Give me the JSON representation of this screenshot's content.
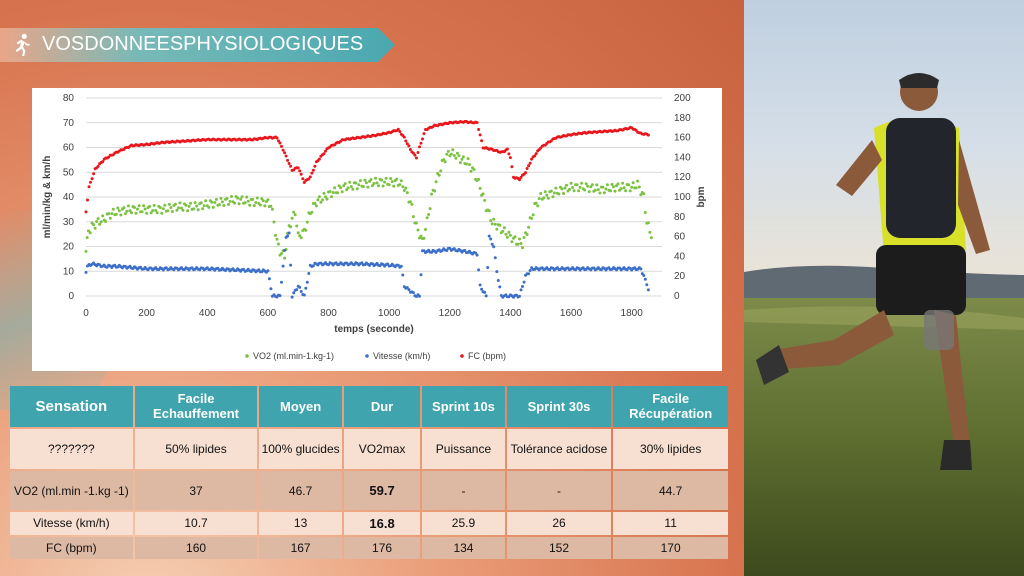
{
  "slide": {
    "title": "VOS DONNEES PHYSIOLOGIQUES",
    "title_parts": [
      "VOS",
      "DONNEES",
      "PHYSIOLOGIQUES"
    ]
  },
  "colors": {
    "vo2": "#7cc242",
    "speed": "#3d6fc8",
    "hr": "#e8171d",
    "table_header": "#3fa4ad",
    "banner": "#5fb4b8"
  },
  "chart_data": {
    "type": "scatter",
    "xlabel": "temps (seconde)",
    "ylabel_left": "ml/min/kg   &   km/h",
    "ylabel_right": "bpm",
    "x_ticks": [
      0,
      200,
      400,
      600,
      800,
      1000,
      1200,
      1400,
      1600,
      1800
    ],
    "y_left_ticks": [
      0,
      10,
      20,
      30,
      40,
      50,
      60,
      70,
      80
    ],
    "y_right_ticks": [
      0,
      20,
      40,
      60,
      80,
      100,
      120,
      140,
      160,
      180,
      200
    ],
    "xlim": [
      0,
      1900
    ],
    "ylim_left": [
      0,
      80
    ],
    "ylim_right": [
      0,
      200
    ],
    "legend_position": "bottom",
    "series": [
      {
        "name": "VO2  (ml.min-1.kg-1)",
        "axis": "left",
        "color": "#7cc242",
        "points": [
          [
            0,
            18
          ],
          [
            8,
            26
          ],
          [
            20,
            28
          ],
          [
            40,
            30
          ],
          [
            60,
            31
          ],
          [
            80,
            33
          ],
          [
            100,
            34
          ],
          [
            150,
            35
          ],
          [
            200,
            35
          ],
          [
            250,
            35
          ],
          [
            300,
            36
          ],
          [
            350,
            36
          ],
          [
            400,
            37
          ],
          [
            450,
            38
          ],
          [
            500,
            39
          ],
          [
            550,
            38
          ],
          [
            590,
            38
          ],
          [
            610,
            37
          ],
          [
            620,
            30
          ],
          [
            630,
            22
          ],
          [
            640,
            18
          ],
          [
            655,
            16
          ],
          [
            670,
            28
          ],
          [
            690,
            34
          ],
          [
            700,
            24
          ],
          [
            720,
            26
          ],
          [
            740,
            34
          ],
          [
            760,
            38
          ],
          [
            800,
            41
          ],
          [
            850,
            44
          ],
          [
            900,
            45
          ],
          [
            950,
            46
          ],
          [
            1000,
            46
          ],
          [
            1030,
            46
          ],
          [
            1050,
            44
          ],
          [
            1070,
            38
          ],
          [
            1090,
            28
          ],
          [
            1110,
            22
          ],
          [
            1125,
            30
          ],
          [
            1140,
            40
          ],
          [
            1160,
            48
          ],
          [
            1180,
            55
          ],
          [
            1200,
            58
          ],
          [
            1220,
            57
          ],
          [
            1240,
            55
          ],
          [
            1260,
            54
          ],
          [
            1280,
            50
          ],
          [
            1300,
            44
          ],
          [
            1320,
            36
          ],
          [
            1340,
            30
          ],
          [
            1360,
            28
          ],
          [
            1380,
            26
          ],
          [
            1400,
            24
          ],
          [
            1420,
            22
          ],
          [
            1440,
            21
          ],
          [
            1460,
            28
          ],
          [
            1480,
            36
          ],
          [
            1500,
            40
          ],
          [
            1550,
            42
          ],
          [
            1600,
            44
          ],
          [
            1650,
            44
          ],
          [
            1700,
            43
          ],
          [
            1750,
            44
          ],
          [
            1800,
            44
          ],
          [
            1820,
            45
          ],
          [
            1840,
            40
          ],
          [
            1850,
            30
          ],
          [
            1860,
            26
          ],
          [
            1870,
            24
          ]
        ]
      },
      {
        "name": "Vitesse (km/h)",
        "axis": "left",
        "color": "#3d6fc8",
        "points": [
          [
            0,
            10
          ],
          [
            5,
            12
          ],
          [
            20,
            13
          ],
          [
            60,
            12
          ],
          [
            100,
            12
          ],
          [
            200,
            11
          ],
          [
            300,
            11
          ],
          [
            400,
            11
          ],
          [
            500,
            10.5
          ],
          [
            600,
            10
          ],
          [
            615,
            0
          ],
          [
            640,
            0
          ],
          [
            660,
            24
          ],
          [
            670,
            25
          ],
          [
            680,
            0
          ],
          [
            700,
            4
          ],
          [
            720,
            0
          ],
          [
            740,
            12
          ],
          [
            760,
            13
          ],
          [
            800,
            13
          ],
          [
            900,
            13
          ],
          [
            1000,
            12.5
          ],
          [
            1040,
            12
          ],
          [
            1050,
            4
          ],
          [
            1070,
            2
          ],
          [
            1090,
            0
          ],
          [
            1100,
            0
          ],
          [
            1110,
            18
          ],
          [
            1150,
            18
          ],
          [
            1200,
            19
          ],
          [
            1250,
            18
          ],
          [
            1290,
            17
          ],
          [
            1300,
            4
          ],
          [
            1320,
            0
          ],
          [
            1330,
            24
          ],
          [
            1345,
            20
          ],
          [
            1355,
            10
          ],
          [
            1370,
            0
          ],
          [
            1400,
            0
          ],
          [
            1430,
            0
          ],
          [
            1450,
            8
          ],
          [
            1470,
            11
          ],
          [
            1500,
            11
          ],
          [
            1600,
            11
          ],
          [
            1700,
            11
          ],
          [
            1800,
            11
          ],
          [
            1830,
            11
          ],
          [
            1850,
            5
          ],
          [
            1860,
            0
          ]
        ]
      },
      {
        "name": "FC (bpm)",
        "axis": "right",
        "color": "#e8171d",
        "points": [
          [
            0,
            85
          ],
          [
            10,
            110
          ],
          [
            30,
            128
          ],
          [
            60,
            138
          ],
          [
            100,
            145
          ],
          [
            150,
            152
          ],
          [
            200,
            153
          ],
          [
            250,
            155
          ],
          [
            300,
            156
          ],
          [
            350,
            157
          ],
          [
            400,
            158
          ],
          [
            450,
            158
          ],
          [
            500,
            158
          ],
          [
            550,
            158
          ],
          [
            600,
            160
          ],
          [
            630,
            160
          ],
          [
            650,
            148
          ],
          [
            680,
            127
          ],
          [
            700,
            130
          ],
          [
            720,
            115
          ],
          [
            740,
            120
          ],
          [
            760,
            135
          ],
          [
            800,
            150
          ],
          [
            850,
            158
          ],
          [
            900,
            160
          ],
          [
            950,
            162
          ],
          [
            1000,
            165
          ],
          [
            1030,
            168
          ],
          [
            1050,
            160
          ],
          [
            1070,
            148
          ],
          [
            1090,
            140
          ],
          [
            1100,
            150
          ],
          [
            1120,
            168
          ],
          [
            1150,
            172
          ],
          [
            1200,
            175
          ],
          [
            1250,
            176
          ],
          [
            1290,
            175
          ],
          [
            1310,
            150
          ],
          [
            1340,
            148
          ],
          [
            1370,
            145
          ],
          [
            1390,
            148
          ],
          [
            1400,
            140
          ],
          [
            1410,
            120
          ],
          [
            1430,
            118
          ],
          [
            1450,
            125
          ],
          [
            1470,
            138
          ],
          [
            1500,
            150
          ],
          [
            1550,
            160
          ],
          [
            1600,
            163
          ],
          [
            1650,
            165
          ],
          [
            1700,
            166
          ],
          [
            1750,
            167
          ],
          [
            1800,
            170
          ],
          [
            1830,
            164
          ],
          [
            1860,
            163
          ]
        ]
      }
    ]
  },
  "table": {
    "header": [
      "Sensation",
      "Facile Echauffement",
      "Moyen",
      "Dur",
      "Sprint 10s",
      "Sprint   30s",
      "Facile Récupération"
    ],
    "rows": [
      {
        "label": "???????",
        "cells": [
          "50%   lipides",
          "100% glucides",
          "VO2max",
          "Puissance",
          "Tolérance acidose",
          "30%   lipides"
        ]
      },
      {
        "label": "VO2  (ml.min -1.kg -1)",
        "cells": [
          "37",
          "46.7",
          "59.7",
          "-",
          "-",
          "44.7"
        ]
      },
      {
        "label": "Vitesse   (km/h)",
        "cells": [
          "10.7",
          "13",
          "16.8",
          "25.9",
          "26",
          "11"
        ]
      },
      {
        "label": "FC  (bpm)",
        "cells": [
          "160",
          "167",
          "176",
          "134",
          "152",
          "170"
        ]
      }
    ]
  }
}
